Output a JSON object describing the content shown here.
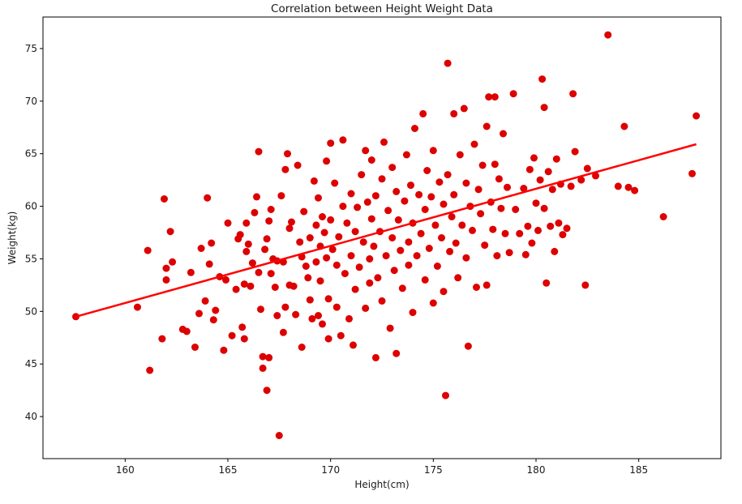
{
  "chart_data": {
    "type": "scatter",
    "title": "Correlation between Height Weight Data",
    "xlabel": "Height(cm)",
    "ylabel": "Weight(kg)",
    "xlim": [
      156,
      189
    ],
    "ylim": [
      36,
      78
    ],
    "x_ticks": [
      160,
      165,
      170,
      175,
      180,
      185
    ],
    "y_ticks": [
      40,
      45,
      50,
      55,
      60,
      65,
      70,
      75
    ],
    "grid": false,
    "marker_color": "#dd0000",
    "line_color": "#ff0000",
    "regression_line": {
      "x": [
        157.6,
        187.8
      ],
      "y": [
        49.5,
        65.9
      ]
    },
    "series": [
      {
        "points": [
          [
            157.6,
            49.5
          ],
          [
            160.6,
            50.4
          ],
          [
            161.1,
            55.8
          ],
          [
            161.2,
            44.4
          ],
          [
            161.8,
            47.4
          ],
          [
            161.9,
            60.7
          ],
          [
            162.0,
            53.0
          ],
          [
            162.0,
            54.1
          ],
          [
            162.2,
            57.6
          ],
          [
            162.3,
            54.7
          ],
          [
            162.8,
            48.3
          ],
          [
            163.0,
            48.1
          ],
          [
            163.2,
            53.7
          ],
          [
            163.4,
            46.6
          ],
          [
            163.6,
            49.8
          ],
          [
            163.7,
            56.0
          ],
          [
            163.9,
            51.0
          ],
          [
            164.0,
            60.8
          ],
          [
            164.1,
            54.5
          ],
          [
            164.2,
            56.5
          ],
          [
            164.3,
            49.2
          ],
          [
            164.4,
            50.1
          ],
          [
            164.6,
            53.3
          ],
          [
            164.8,
            46.3
          ],
          [
            164.9,
            53.0
          ],
          [
            165.0,
            58.4
          ],
          [
            165.2,
            47.7
          ],
          [
            165.4,
            52.1
          ],
          [
            165.5,
            56.9
          ],
          [
            165.6,
            57.3
          ],
          [
            165.7,
            48.5
          ],
          [
            165.8,
            47.4
          ],
          [
            165.8,
            52.6
          ],
          [
            165.9,
            55.7
          ],
          [
            165.9,
            58.4
          ],
          [
            166.0,
            56.4
          ],
          [
            166.1,
            52.4
          ],
          [
            166.2,
            54.6
          ],
          [
            166.3,
            59.4
          ],
          [
            166.5,
            65.2
          ],
          [
            166.4,
            60.9
          ],
          [
            166.5,
            53.7
          ],
          [
            166.6,
            50.2
          ],
          [
            166.7,
            45.7
          ],
          [
            166.7,
            44.6
          ],
          [
            166.8,
            55.9
          ],
          [
            166.9,
            56.9
          ],
          [
            166.9,
            42.5
          ],
          [
            167.0,
            45.6
          ],
          [
            167.0,
            58.6
          ],
          [
            167.1,
            59.7
          ],
          [
            167.1,
            53.6
          ],
          [
            167.2,
            55.0
          ],
          [
            167.3,
            52.3
          ],
          [
            167.4,
            49.6
          ],
          [
            167.4,
            54.8
          ],
          [
            167.5,
            38.2
          ],
          [
            167.6,
            61.0
          ],
          [
            167.7,
            54.7
          ],
          [
            167.7,
            48.0
          ],
          [
            167.8,
            63.5
          ],
          [
            167.8,
            50.4
          ],
          [
            167.9,
            65.0
          ],
          [
            168.0,
            52.5
          ],
          [
            168.0,
            57.9
          ],
          [
            168.1,
            58.5
          ],
          [
            168.2,
            52.4
          ],
          [
            168.3,
            49.7
          ],
          [
            168.4,
            63.9
          ],
          [
            168.5,
            56.6
          ],
          [
            168.6,
            46.6
          ],
          [
            168.6,
            55.2
          ],
          [
            168.7,
            59.5
          ],
          [
            168.8,
            54.3
          ],
          [
            168.9,
            53.2
          ],
          [
            169.0,
            51.1
          ],
          [
            169.0,
            57.0
          ],
          [
            169.1,
            49.3
          ],
          [
            169.2,
            62.4
          ],
          [
            169.3,
            54.7
          ],
          [
            169.3,
            58.2
          ],
          [
            169.4,
            49.6
          ],
          [
            169.4,
            60.8
          ],
          [
            169.5,
            52.9
          ],
          [
            169.5,
            56.2
          ],
          [
            169.6,
            59.0
          ],
          [
            169.6,
            48.8
          ],
          [
            169.7,
            57.5
          ],
          [
            169.8,
            64.3
          ],
          [
            169.8,
            55.1
          ],
          [
            169.9,
            47.4
          ],
          [
            169.9,
            51.2
          ],
          [
            170.0,
            66.0
          ],
          [
            170.0,
            58.7
          ],
          [
            170.1,
            55.9
          ],
          [
            170.2,
            62.2
          ],
          [
            170.3,
            54.4
          ],
          [
            170.3,
            50.4
          ],
          [
            170.4,
            57.1
          ],
          [
            170.5,
            47.7
          ],
          [
            170.6,
            66.3
          ],
          [
            170.6,
            60.0
          ],
          [
            170.7,
            53.6
          ],
          [
            170.8,
            58.4
          ],
          [
            170.9,
            49.3
          ],
          [
            171.0,
            61.2
          ],
          [
            171.0,
            55.3
          ],
          [
            171.1,
            46.8
          ],
          [
            171.2,
            57.6
          ],
          [
            171.2,
            52.1
          ],
          [
            171.3,
            59.9
          ],
          [
            171.4,
            54.2
          ],
          [
            171.5,
            63.0
          ],
          [
            171.6,
            56.6
          ],
          [
            171.7,
            65.3
          ],
          [
            171.7,
            50.3
          ],
          [
            171.8,
            60.4
          ],
          [
            171.9,
            55.0
          ],
          [
            171.9,
            52.7
          ],
          [
            172.0,
            64.4
          ],
          [
            172.0,
            58.8
          ],
          [
            172.1,
            56.2
          ],
          [
            172.2,
            61.0
          ],
          [
            172.2,
            45.6
          ],
          [
            172.3,
            53.2
          ],
          [
            172.4,
            57.6
          ],
          [
            172.5,
            62.6
          ],
          [
            172.5,
            51.0
          ],
          [
            172.6,
            66.1
          ],
          [
            172.7,
            55.3
          ],
          [
            172.8,
            59.6
          ],
          [
            172.9,
            48.4
          ],
          [
            173.0,
            63.7
          ],
          [
            173.0,
            57.0
          ],
          [
            173.1,
            53.9
          ],
          [
            173.2,
            61.4
          ],
          [
            173.2,
            46.0
          ],
          [
            173.3,
            58.7
          ],
          [
            173.4,
            55.8
          ],
          [
            173.5,
            52.2
          ],
          [
            173.6,
            60.5
          ],
          [
            173.7,
            64.9
          ],
          [
            173.8,
            56.6
          ],
          [
            173.8,
            54.4
          ],
          [
            173.9,
            62.0
          ],
          [
            174.0,
            49.9
          ],
          [
            174.0,
            58.4
          ],
          [
            174.1,
            67.4
          ],
          [
            174.2,
            55.3
          ],
          [
            174.3,
            61.1
          ],
          [
            174.4,
            57.4
          ],
          [
            174.5,
            68.8
          ],
          [
            174.6,
            53.0
          ],
          [
            174.6,
            59.7
          ],
          [
            174.7,
            63.4
          ],
          [
            174.8,
            56.0
          ],
          [
            174.9,
            60.9
          ],
          [
            175.0,
            50.8
          ],
          [
            175.0,
            65.3
          ],
          [
            175.1,
            58.2
          ],
          [
            175.2,
            54.3
          ],
          [
            175.3,
            62.3
          ],
          [
            175.4,
            57.0
          ],
          [
            175.5,
            60.2
          ],
          [
            175.5,
            51.9
          ],
          [
            175.6,
            42.0
          ],
          [
            175.7,
            73.6
          ],
          [
            175.7,
            63.0
          ],
          [
            175.8,
            55.7
          ],
          [
            175.9,
            59.0
          ],
          [
            176.0,
            68.8
          ],
          [
            176.0,
            61.1
          ],
          [
            176.1,
            56.5
          ],
          [
            176.2,
            53.2
          ],
          [
            176.3,
            64.9
          ],
          [
            176.4,
            58.2
          ],
          [
            176.5,
            69.3
          ],
          [
            176.6,
            55.1
          ],
          [
            176.6,
            62.2
          ],
          [
            176.7,
            46.7
          ],
          [
            176.8,
            60.0
          ],
          [
            176.9,
            57.7
          ],
          [
            177.0,
            65.9
          ],
          [
            177.1,
            52.3
          ],
          [
            177.2,
            61.6
          ],
          [
            177.3,
            59.3
          ],
          [
            177.4,
            63.9
          ],
          [
            177.5,
            56.3
          ],
          [
            177.6,
            67.6
          ],
          [
            177.6,
            52.5
          ],
          [
            177.7,
            70.4
          ],
          [
            177.8,
            60.4
          ],
          [
            177.9,
            57.8
          ],
          [
            178.0,
            64.0
          ],
          [
            178.0,
            70.4
          ],
          [
            178.1,
            55.3
          ],
          [
            178.2,
            62.6
          ],
          [
            178.3,
            59.8
          ],
          [
            178.4,
            66.9
          ],
          [
            178.5,
            57.4
          ],
          [
            178.6,
            61.8
          ],
          [
            178.7,
            55.6
          ],
          [
            178.9,
            70.7
          ],
          [
            179.0,
            59.7
          ],
          [
            179.2,
            57.4
          ],
          [
            179.4,
            61.7
          ],
          [
            179.5,
            55.4
          ],
          [
            179.6,
            58.1
          ],
          [
            179.7,
            63.5
          ],
          [
            179.8,
            56.5
          ],
          [
            179.9,
            64.6
          ],
          [
            180.0,
            60.3
          ],
          [
            180.1,
            57.7
          ],
          [
            180.2,
            62.5
          ],
          [
            180.3,
            72.1
          ],
          [
            180.4,
            69.4
          ],
          [
            180.4,
            59.8
          ],
          [
            180.5,
            52.7
          ],
          [
            180.6,
            63.3
          ],
          [
            180.7,
            58.1
          ],
          [
            180.8,
            61.6
          ],
          [
            180.9,
            55.7
          ],
          [
            181.0,
            64.5
          ],
          [
            181.1,
            58.4
          ],
          [
            181.2,
            62.1
          ],
          [
            181.3,
            57.3
          ],
          [
            181.5,
            57.9
          ],
          [
            181.7,
            61.9
          ],
          [
            181.8,
            70.7
          ],
          [
            181.9,
            65.2
          ],
          [
            182.2,
            62.5
          ],
          [
            182.4,
            52.5
          ],
          [
            182.5,
            63.6
          ],
          [
            182.9,
            62.9
          ],
          [
            183.5,
            76.3
          ],
          [
            184.0,
            61.9
          ],
          [
            184.3,
            67.6
          ],
          [
            184.5,
            61.8
          ],
          [
            184.8,
            61.5
          ],
          [
            186.2,
            59.0
          ],
          [
            187.6,
            63.1
          ],
          [
            187.8,
            68.6
          ]
        ]
      }
    ]
  }
}
